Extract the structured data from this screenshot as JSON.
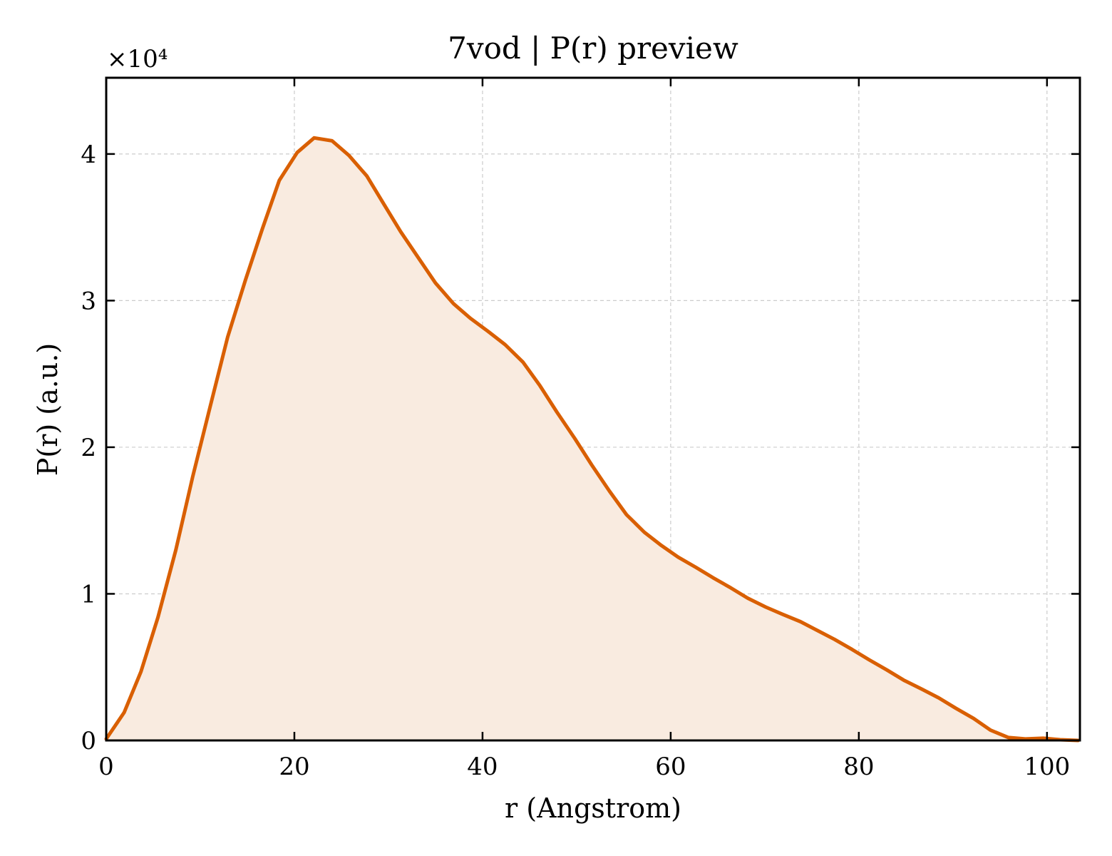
{
  "chart_data": {
    "type": "area",
    "title": "7vod | P(r) preview",
    "xlabel": "r (Angstrom)",
    "ylabel": "P(r) (a.u.)",
    "y_multiplier": "×10⁴",
    "xlim": [
      0,
      103.5
    ],
    "ylim": [
      0,
      4.52
    ],
    "x_ticks": [
      0,
      20,
      40,
      60,
      80,
      100
    ],
    "y_ticks": [
      0,
      1,
      2,
      3,
      4
    ],
    "x_tick_labels": [
      "0",
      "20",
      "40",
      "60",
      "80",
      "100"
    ],
    "y_tick_labels": [
      "0",
      "1",
      "2",
      "3",
      "4"
    ],
    "grid": true,
    "colors": {
      "line": "#d95f02",
      "fill": "#f9ebe0",
      "grid": "#cccccc",
      "axes": "#000000"
    },
    "series": [
      {
        "x": [
          0,
          1.9,
          3.7,
          5.5,
          7.4,
          9.2,
          11.1,
          12.9,
          14.8,
          16.6,
          18.4,
          20.3,
          22.1,
          24.0,
          25.8,
          27.7,
          29.5,
          31.3,
          33.2,
          35.0,
          36.9,
          38.7,
          40.6,
          42.4,
          44.3,
          46.1,
          47.9,
          49.8,
          51.6,
          53.5,
          55.3,
          57.2,
          59.0,
          60.8,
          62.7,
          64.5,
          66.4,
          68.2,
          70.1,
          71.9,
          73.8,
          75.6,
          77.4,
          79.3,
          81.1,
          83.0,
          84.8,
          86.7,
          88.5,
          90.3,
          92.2,
          94.0,
          95.9,
          97.7,
          99.6,
          101.4,
          103.3
        ],
        "y": [
          0.01,
          0.19,
          0.47,
          0.84,
          1.3,
          1.8,
          2.29,
          2.75,
          3.14,
          3.49,
          3.82,
          4.01,
          4.11,
          4.09,
          3.99,
          3.85,
          3.66,
          3.47,
          3.29,
          3.12,
          2.98,
          2.88,
          2.79,
          2.7,
          2.58,
          2.42,
          2.24,
          2.06,
          1.88,
          1.7,
          1.54,
          1.42,
          1.33,
          1.25,
          1.18,
          1.11,
          1.04,
          0.97,
          0.91,
          0.86,
          0.81,
          0.75,
          0.69,
          0.62,
          0.55,
          0.48,
          0.41,
          0.35,
          0.29,
          0.22,
          0.15,
          0.07,
          0.02,
          0.01,
          0.015,
          0.005,
          0.0
        ]
      }
    ]
  }
}
